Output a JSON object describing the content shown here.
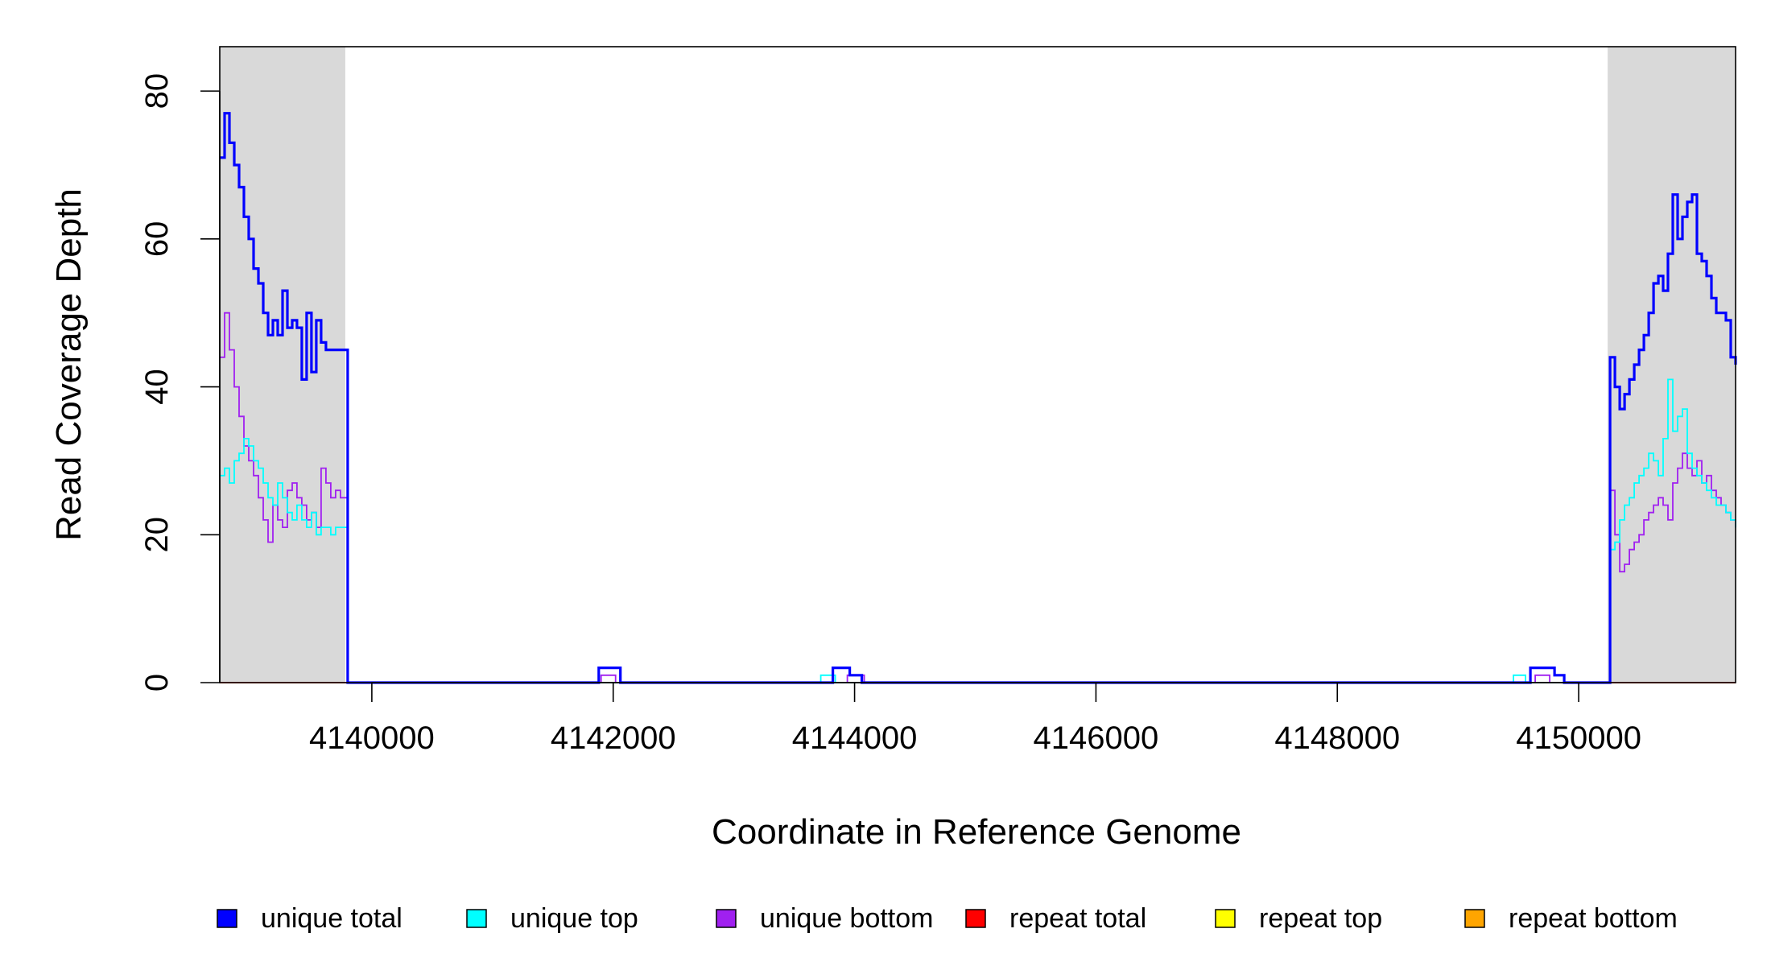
{
  "chart_data": {
    "type": "line",
    "title": "",
    "xlabel": "Coordinate in Reference Genome",
    "ylabel": "Read Coverage Depth",
    "xlim": [
      4138740,
      4151300
    ],
    "ylim": [
      0,
      86
    ],
    "x_ticks": [
      {
        "value": 4140000,
        "label": "4140000"
      },
      {
        "value": 4142000,
        "label": "4142000"
      },
      {
        "value": 4144000,
        "label": "4144000"
      },
      {
        "value": 4146000,
        "label": "4146000"
      },
      {
        "value": 4148000,
        "label": "4148000"
      },
      {
        "value": 4150000,
        "label": "4150000"
      }
    ],
    "y_ticks": [
      {
        "value": 0,
        "label": "0"
      },
      {
        "value": 20,
        "label": "20"
      },
      {
        "value": 40,
        "label": "40"
      },
      {
        "value": 60,
        "label": "60"
      },
      {
        "value": 80,
        "label": "80"
      }
    ],
    "shaded_regions": [
      {
        "x0": 4138740,
        "x1": 4139780,
        "color": "#d9d9d9"
      },
      {
        "x0": 4150240,
        "x1": 4151300,
        "color": "#d9d9d9"
      }
    ],
    "legend_position": "bottom",
    "series": [
      {
        "name": "unique total",
        "color": "#0000ff",
        "x": [
          4138740,
          4138780,
          4138820,
          4138860,
          4138900,
          4138940,
          4138980,
          4139020,
          4139060,
          4139100,
          4139140,
          4139180,
          4139220,
          4139260,
          4139300,
          4139340,
          4139380,
          4139420,
          4139460,
          4139500,
          4139540,
          4139580,
          4139620,
          4139660,
          4139700,
          4139740,
          4139780,
          4139800,
          4141880,
          4142060,
          4143820,
          4143960,
          4144060,
          4149600,
          4149800,
          4149880,
          4150240,
          4150260,
          4150300,
          4150340,
          4150380,
          4150420,
          4150460,
          4150500,
          4150540,
          4150580,
          4150620,
          4150660,
          4150700,
          4150740,
          4150780,
          4150820,
          4150860,
          4150900,
          4150940,
          4150980,
          4151020,
          4151060,
          4151100,
          4151140,
          4151180,
          4151220,
          4151260,
          4151300
        ],
        "y": [
          71,
          77,
          73,
          70,
          67,
          63,
          60,
          56,
          54,
          50,
          47,
          49,
          47,
          53,
          48,
          49,
          48,
          41,
          50,
          42,
          49,
          46,
          45,
          45,
          45,
          45,
          45,
          0,
          2,
          0,
          2,
          1,
          0,
          2,
          1,
          0,
          0,
          44,
          40,
          37,
          39,
          41,
          43,
          45,
          47,
          50,
          54,
          55,
          53,
          58,
          66,
          60,
          63,
          65,
          66,
          58,
          57,
          55,
          52,
          50,
          50,
          49,
          44,
          43
        ]
      },
      {
        "name": "unique top",
        "color": "#00ffff",
        "x": [
          4138740,
          4138780,
          4138820,
          4138860,
          4138900,
          4138940,
          4138980,
          4139020,
          4139060,
          4139100,
          4139140,
          4139180,
          4139220,
          4139260,
          4139300,
          4139340,
          4139380,
          4139420,
          4139460,
          4139500,
          4139540,
          4139580,
          4139620,
          4139660,
          4139700,
          4139740,
          4139780,
          4139800,
          4143720,
          4143840,
          4149460,
          4149560,
          4149800,
          4150240,
          4150260,
          4150300,
          4150340,
          4150380,
          4150420,
          4150460,
          4150500,
          4150540,
          4150580,
          4150620,
          4150660,
          4150700,
          4150740,
          4150780,
          4150820,
          4150860,
          4150900,
          4150940,
          4150980,
          4151020,
          4151060,
          4151100,
          4151140,
          4151180,
          4151220,
          4151260,
          4151300
        ],
        "y": [
          28,
          29,
          27,
          30,
          31,
          33,
          32,
          30,
          29,
          27,
          25,
          24,
          27,
          25,
          23,
          22,
          24,
          22,
          21,
          23,
          20,
          21,
          21,
          20,
          21,
          21,
          21,
          0,
          1,
          0,
          1,
          0,
          0,
          0,
          18,
          19,
          22,
          24,
          25,
          27,
          28,
          29,
          31,
          30,
          28,
          33,
          41,
          34,
          36,
          37,
          31,
          29,
          28,
          27,
          26,
          25,
          24,
          24,
          23,
          22,
          21
        ]
      },
      {
        "name": "unique bottom",
        "color": "#a020f0",
        "x": [
          4138740,
          4138780,
          4138820,
          4138860,
          4138900,
          4138940,
          4138980,
          4139020,
          4139060,
          4139100,
          4139140,
          4139180,
          4139220,
          4139260,
          4139300,
          4139340,
          4139380,
          4139420,
          4139460,
          4139500,
          4139540,
          4139580,
          4139620,
          4139660,
          4139700,
          4139740,
          4139780,
          4139800,
          4141900,
          4142020,
          4143940,
          4144080,
          4149640,
          4149760,
          4150240,
          4150260,
          4150300,
          4150340,
          4150380,
          4150420,
          4150460,
          4150500,
          4150540,
          4150580,
          4150620,
          4150660,
          4150700,
          4150740,
          4150780,
          4150820,
          4150860,
          4150900,
          4150940,
          4150980,
          4151020,
          4151060,
          4151100,
          4151140,
          4151180,
          4151220,
          4151260,
          4151300
        ],
        "y": [
          44,
          50,
          45,
          40,
          36,
          32,
          30,
          28,
          25,
          22,
          19,
          24,
          22,
          21,
          26,
          27,
          25,
          24,
          22,
          23,
          21,
          29,
          27,
          25,
          26,
          25,
          25,
          0,
          1,
          0,
          1,
          0,
          1,
          0,
          0,
          26,
          20,
          15,
          16,
          18,
          19,
          20,
          22,
          23,
          24,
          25,
          24,
          22,
          27,
          29,
          31,
          29,
          28,
          30,
          27,
          28,
          26,
          25,
          24,
          23,
          22,
          21
        ]
      },
      {
        "name": "repeat total",
        "color": "#ff0000",
        "x": [
          4138740,
          4151300
        ],
        "y": [
          0,
          0
        ]
      },
      {
        "name": "repeat top",
        "color": "#ffff00",
        "x": [
          4138740,
          4151300
        ],
        "y": [
          0,
          0
        ]
      },
      {
        "name": "repeat bottom",
        "color": "#ffa500",
        "x": [
          4138740,
          4151300
        ],
        "y": [
          0,
          0
        ]
      }
    ]
  }
}
